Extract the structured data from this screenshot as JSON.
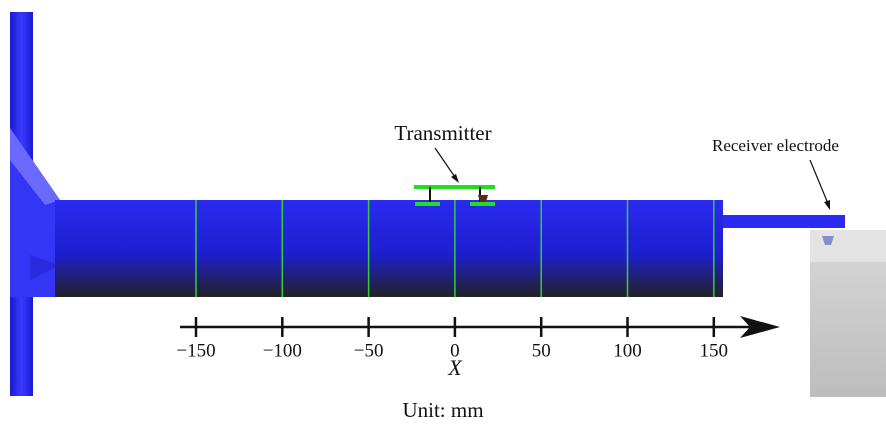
{
  "labels": {
    "transmitter": "Transmitter",
    "receiver": "Receiver electrode"
  },
  "axis": {
    "ticks": [
      "−150",
      "−100",
      "−50",
      "0",
      "50",
      "100",
      "150"
    ],
    "name": "X"
  },
  "unit": "Unit: mm"
}
